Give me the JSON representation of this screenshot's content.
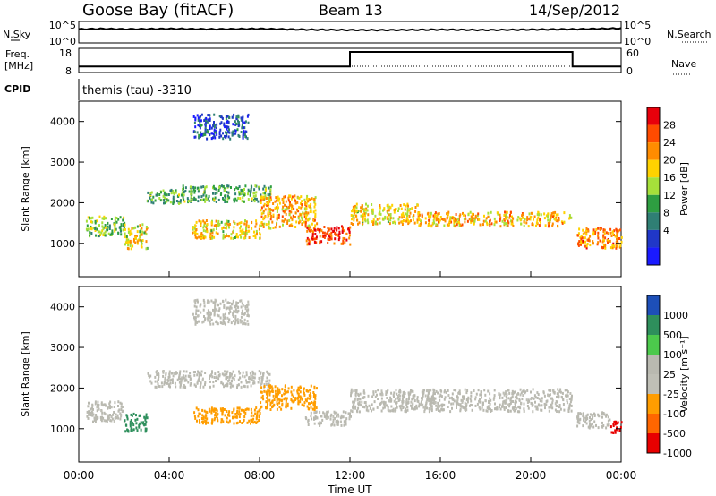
{
  "header": {
    "station": "Goose Bay (fitACF)",
    "beam": "Beam 13",
    "date": "14/Sep/2012"
  },
  "noise_panel": {
    "left_label": "N.Sky",
    "left_ticks": [
      "10^5",
      "10^0"
    ],
    "right_label": "N.Search",
    "right_ticks": [
      "10^5",
      "10^0"
    ]
  },
  "freq_panel": {
    "left_label_1": "Freq.",
    "left_label_2": "[MHz]",
    "left_ticks": [
      "18",
      "8"
    ],
    "right_label": "Nave",
    "right_ticks": [
      "60",
      "0"
    ]
  },
  "cpid": {
    "label": "CPID",
    "text": "themis (tau) -3310"
  },
  "x_axis": {
    "ticks": [
      "00:00",
      "04:00",
      "08:00",
      "12:00",
      "16:00",
      "20:00",
      "00:00"
    ],
    "label": "Time UT"
  },
  "power_colorbar": {
    "label": "Power [dB]",
    "ticks": [
      "28",
      "24",
      "20",
      "16",
      "12",
      "8",
      "4"
    ],
    "colors": [
      "#e8000b",
      "#ff4b00",
      "#ff8c00",
      "#ffd200",
      "#a6e03a",
      "#2e9e41",
      "#2f7f74",
      "#2037c8",
      "#1a1aff"
    ]
  },
  "velocity_colorbar": {
    "label": "Velocity [m s⁻¹]",
    "ticks": [
      "1000",
      "500",
      "100",
      "25",
      "-25",
      "-100",
      "-500",
      "-1000"
    ],
    "colors": [
      "#1d4fb8",
      "#2e8f5c",
      "#4cc94c",
      "#b9b9b0",
      "#bfbfb6",
      "#ff9d00",
      "#ff6600",
      "#e80000"
    ]
  },
  "chart_data": [
    {
      "type": "line",
      "title": "",
      "ylabel": "N.Sky",
      "x": [
        0,
        1,
        2,
        4,
        6,
        8,
        10,
        12,
        14,
        16,
        18,
        20,
        22,
        24
      ],
      "series": [
        {
          "name": "N.Sky",
          "values": [
            3.2,
            3.3,
            3.2,
            3.3,
            3.2,
            3.3,
            3.1,
            3.0,
            3.0,
            3.1,
            3.0,
            3.1,
            3.2,
            3.4
          ]
        }
      ],
      "ylim": [
        0,
        5
      ],
      "ytick_labels": [
        "10^0",
        "10^5"
      ]
    },
    {
      "type": "line",
      "title": "",
      "ylabel": "Freq. [MHz]",
      "x": [
        0,
        12,
        12,
        21.85,
        21.85,
        24
      ],
      "series": [
        {
          "name": "Freq.",
          "values": [
            10.5,
            10.5,
            16.5,
            16.5,
            10.5,
            10.5
          ]
        }
      ],
      "ylim": [
        8,
        18
      ]
    },
    {
      "type": "heatmap",
      "title": "",
      "quantity": "Power",
      "xlabel": "",
      "ylabel": "Slant Range [km]",
      "xlim": [
        0,
        24
      ],
      "ylim": [
        180,
        4500
      ],
      "yticks": [
        1000,
        2000,
        3000,
        4000
      ],
      "xticks": [
        "00:00",
        "04:00",
        "08:00",
        "12:00",
        "16:00",
        "20:00",
        "00:00"
      ],
      "colorbar_label": "Power [dB]",
      "colorbar_range": [
        0,
        30
      ],
      "colorbar_ticks": [
        4,
        8,
        12,
        16,
        20,
        24,
        28
      ],
      "scatter_bands": [
        {
          "t": [
            0.3,
            2.0
          ],
          "range": [
            1200,
            1700
          ],
          "value": 14
        },
        {
          "t": [
            2.0,
            3.0
          ],
          "range": [
            900,
            1500
          ],
          "value": 18
        },
        {
          "t": [
            3.0,
            4.5
          ],
          "range": [
            2000,
            2350
          ],
          "value": 12
        },
        {
          "t": [
            4.5,
            8.5
          ],
          "range": [
            2050,
            2450
          ],
          "value": 12
        },
        {
          "t": [
            5.0,
            8.0
          ],
          "range": [
            1150,
            1600
          ],
          "value": 18
        },
        {
          "t": [
            8.0,
            10.5
          ],
          "range": [
            1400,
            2200
          ],
          "value": 20
        },
        {
          "t": [
            10.0,
            12.0
          ],
          "range": [
            1000,
            1450
          ],
          "value": 26
        },
        {
          "t": [
            12.0,
            15.0
          ],
          "range": [
            1500,
            2000
          ],
          "value": 18
        },
        {
          "t": [
            15.0,
            21.8
          ],
          "range": [
            1450,
            1800
          ],
          "value": 20
        },
        {
          "t": [
            22.0,
            24.0
          ],
          "range": [
            900,
            1400
          ],
          "value": 22
        },
        {
          "t": [
            5.0,
            7.5
          ],
          "range": [
            3600,
            4200
          ],
          "value": 6
        }
      ]
    },
    {
      "type": "heatmap",
      "title": "",
      "quantity": "Velocity",
      "xlabel": "Time UT",
      "ylabel": "Slant Range [km]",
      "xlim": [
        0,
        24
      ],
      "ylim": [
        180,
        4500
      ],
      "yticks": [
        1000,
        2000,
        3000,
        4000
      ],
      "xticks": [
        "00:00",
        "04:00",
        "08:00",
        "12:00",
        "16:00",
        "20:00",
        "00:00"
      ],
      "colorbar_label": "Velocity [m s⁻¹]",
      "colorbar_ticks": [
        1000,
        500,
        100,
        25,
        -25,
        -100,
        -500,
        -1000
      ],
      "scatter_bands": [
        {
          "t": [
            0.3,
            2.0
          ],
          "range": [
            1200,
            1700
          ],
          "value": 0
        },
        {
          "t": [
            2.0,
            3.0
          ],
          "range": [
            950,
            1400
          ],
          "value": 400
        },
        {
          "t": [
            3.0,
            8.5
          ],
          "range": [
            2050,
            2450
          ],
          "value": 0
        },
        {
          "t": [
            5.0,
            8.0
          ],
          "range": [
            1150,
            1550
          ],
          "value": -200
        },
        {
          "t": [
            8.0,
            10.5
          ],
          "range": [
            1500,
            2100
          ],
          "value": -100
        },
        {
          "t": [
            10.0,
            12.0
          ],
          "range": [
            1100,
            1450
          ],
          "value": 0
        },
        {
          "t": [
            12.0,
            21.8
          ],
          "range": [
            1450,
            2000
          ],
          "value": 0
        },
        {
          "t": [
            22.0,
            23.5
          ],
          "range": [
            1050,
            1450
          ],
          "value": 20
        },
        {
          "t": [
            23.5,
            24.0
          ],
          "range": [
            900,
            1200
          ],
          "value": -800
        },
        {
          "t": [
            5.0,
            7.5
          ],
          "range": [
            3600,
            4200
          ],
          "value": 0
        }
      ]
    }
  ]
}
